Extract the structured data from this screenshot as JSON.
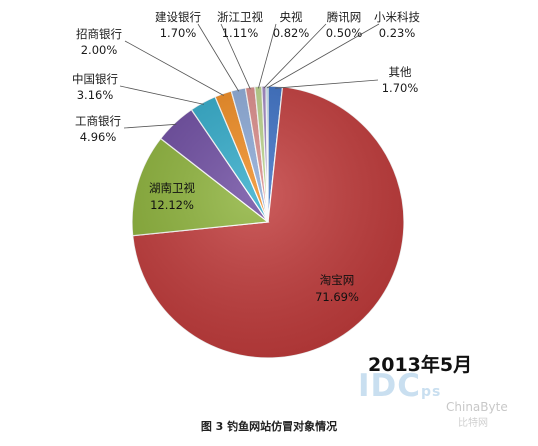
{
  "chart_data": {
    "type": "pie",
    "slices": [
      {
        "name": "淘宝网",
        "value": 71.69,
        "label": "71.69%",
        "color": "#c23b3b"
      },
      {
        "name": "湖南卫视",
        "value": 12.12,
        "label": "12.12%",
        "color": "#8db33a"
      },
      {
        "name": "工商银行",
        "value": 4.96,
        "label": "4.96%",
        "color": "#6c4aa0"
      },
      {
        "name": "中国银行",
        "value": 3.16,
        "label": "3.16%",
        "color": "#2fa9c8"
      },
      {
        "name": "招商银行",
        "value": 2.0,
        "label": "2.00%",
        "color": "#ef8a1f"
      },
      {
        "name": "建设银行",
        "value": 1.7,
        "label": "1.70%",
        "color": "#8aa8d6"
      },
      {
        "name": "浙江卫视",
        "value": 1.11,
        "label": "1.11%",
        "color": "#d98a88"
      },
      {
        "name": "央视",
        "value": 0.82,
        "label": "0.82%",
        "color": "#b9d28a"
      },
      {
        "name": "腾讯网",
        "value": 0.5,
        "label": "0.50%",
        "color": "#9e86c2"
      },
      {
        "name": "小米科技",
        "value": 0.23,
        "label": "0.23%",
        "color": "#7cc4d8"
      },
      {
        "name": "其他",
        "value": 1.7,
        "label": "1.70%",
        "color": "#3a6fc4"
      }
    ],
    "annotation": "2013年5月",
    "caption": "图 3  钓鱼网站仿冒对象情况"
  },
  "watermark": {
    "brand": "IDC",
    "brand_suffix": "ps",
    "site": "ChinaByte",
    "site_cn": "比特网"
  }
}
